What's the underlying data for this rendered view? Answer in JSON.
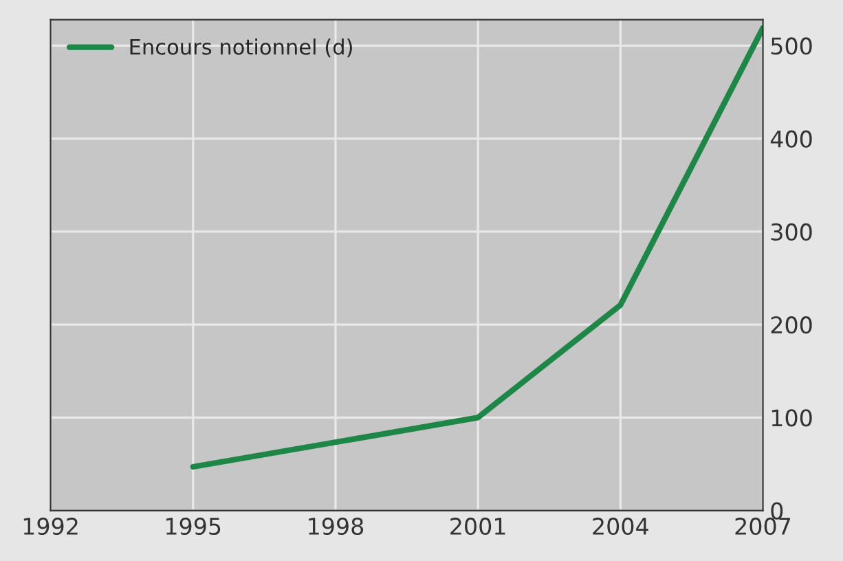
{
  "chart_data": {
    "type": "line",
    "x": [
      1995,
      2001,
      2004,
      2007
    ],
    "series": [
      {
        "name": "Encours notionnel (d)",
        "color": "#1e8748",
        "values": [
          47,
          100,
          221,
          519
        ]
      }
    ],
    "xlim": [
      1992,
      2007
    ],
    "xticks": [
      1992,
      1995,
      1998,
      2001,
      2004,
      2007
    ],
    "ylim": [
      0,
      528
    ],
    "yticks": [
      0,
      100,
      200,
      300,
      400,
      500
    ],
    "grid": true,
    "legend": "top left",
    "line_style": "solid",
    "marker": "none"
  }
}
